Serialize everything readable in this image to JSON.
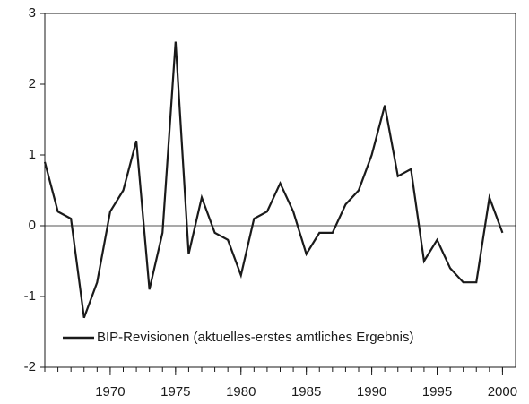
{
  "chart_data": {
    "type": "line",
    "x": [
      1965,
      1966,
      1967,
      1968,
      1969,
      1970,
      1971,
      1972,
      1973,
      1974,
      1975,
      1976,
      1977,
      1978,
      1979,
      1980,
      1981,
      1982,
      1983,
      1984,
      1985,
      1986,
      1987,
      1988,
      1989,
      1990,
      1991,
      1992,
      1993,
      1994,
      1995,
      1996,
      1997,
      1998,
      1999,
      2000
    ],
    "series": [
      {
        "name": "BIP-Revisionen (aktuelles-erstes amtliches Ergebnis)",
        "color": "#1a1a1a",
        "values": [
          0.9,
          0.2,
          0.1,
          -1.3,
          -0.8,
          0.2,
          0.5,
          1.2,
          -0.9,
          -0.1,
          2.6,
          -0.4,
          0.4,
          -0.1,
          -0.2,
          -0.7,
          0.1,
          0.2,
          0.6,
          0.2,
          -0.4,
          -0.1,
          -0.1,
          0.3,
          0.5,
          1.0,
          1.7,
          0.7,
          0.8,
          -0.5,
          -0.2,
          -0.6,
          -0.8,
          -0.8,
          0.4,
          -0.1
        ]
      }
    ],
    "xlim": [
      1965,
      2001
    ],
    "xticks": [
      1970,
      1975,
      1980,
      1985,
      1990,
      1995,
      2000
    ],
    "ylim": [
      -2,
      3
    ],
    "yticks": [
      -2,
      -1,
      0,
      1,
      2,
      3
    ],
    "zero_line": true,
    "legend": "lower left"
  }
}
